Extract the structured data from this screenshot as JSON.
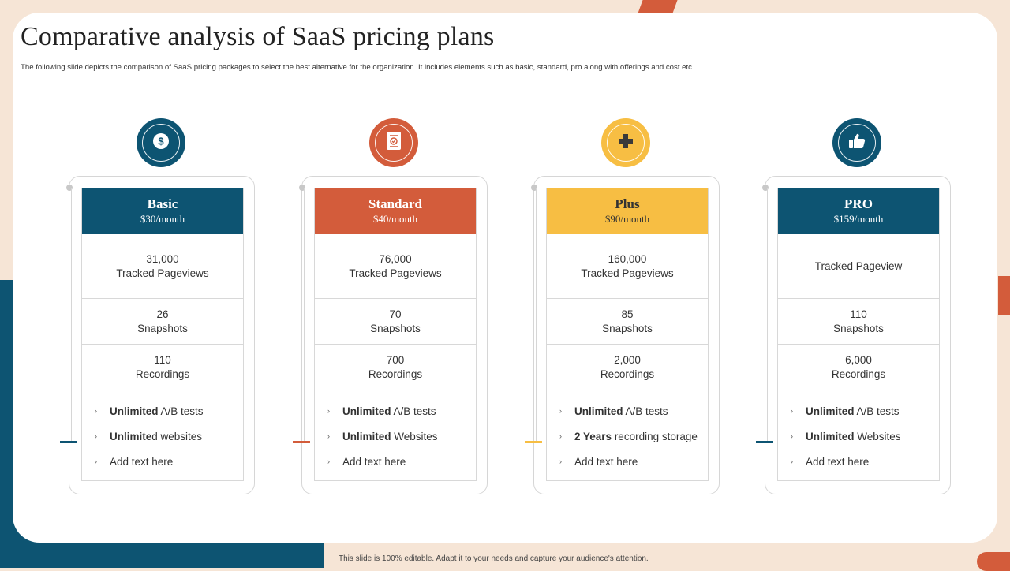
{
  "slide": {
    "title": "Comparative analysis of SaaS pricing plans",
    "subtitle": "The following slide depicts the comparison of SaaS  pricing packages to select the best alternative for the organization. It includes elements  such as basic, standard, pro along  with offerings and cost etc.",
    "footer": "This slide is 100% editable.  Adapt it to your needs and capture your audience's attention."
  },
  "colors": {
    "teal": "#0d5472",
    "orange": "#d35c3b",
    "yellow": "#f7be43",
    "background": "#f6e5d6"
  },
  "plans": [
    {
      "name": "Basic",
      "price": "$30/month",
      "color": "#0d5472",
      "icon": "dollar-coin-icon",
      "pageviews_value": "31,000",
      "pageviews_label": "Tracked Pageviews",
      "snapshots_value": "26",
      "snapshots_label": "Snapshots",
      "recordings_value": "110",
      "recordings_label": "Recordings",
      "features": [
        {
          "bold": "Unlimited",
          "rest": " A/B tests"
        },
        {
          "bold": "Unlimite",
          "rest": "d websites"
        },
        {
          "bold": "",
          "rest": "Add text here"
        }
      ]
    },
    {
      "name": "Standard",
      "price": "$40/month",
      "color": "#d35c3b",
      "icon": "certificate-icon",
      "pageviews_value": "76,000",
      "pageviews_label": "Tracked Pageviews",
      "snapshots_value": "70",
      "snapshots_label": "Snapshots",
      "recordings_value": "700",
      "recordings_label": "Recordings",
      "features": [
        {
          "bold": "Unlimited",
          "rest": " A/B tests"
        },
        {
          "bold": "Unlimited",
          "rest": " Websites"
        },
        {
          "bold": "",
          "rest": "Add text here"
        }
      ]
    },
    {
      "name": "Plus",
      "price": "$90/month",
      "color": "#f7be43",
      "icon": "plus-icon",
      "pageviews_value": "160,000",
      "pageviews_label": "Tracked Pageviews",
      "snapshots_value": "85",
      "snapshots_label": "Snapshots",
      "recordings_value": "2,000",
      "recordings_label": "Recordings",
      "features": [
        {
          "bold": "Unlimited",
          "rest": " A/B tests"
        },
        {
          "bold": "2 Years",
          "rest": " recording storage"
        },
        {
          "bold": "",
          "rest": "Add text here"
        }
      ]
    },
    {
      "name": "PRO",
      "price": "$159/month",
      "color": "#0d5472",
      "icon": "thumbs-up-icon",
      "pageviews_value": "",
      "pageviews_label": "Tracked Pageview",
      "snapshots_value": "110",
      "snapshots_label": "Snapshots",
      "recordings_value": "6,000",
      "recordings_label": "Recordings",
      "features": [
        {
          "bold": "Unlimited",
          "rest": " A/B tests"
        },
        {
          "bold": "Unlimited",
          "rest": " Websites"
        },
        {
          "bold": "",
          "rest": "Add text here"
        }
      ]
    }
  ]
}
